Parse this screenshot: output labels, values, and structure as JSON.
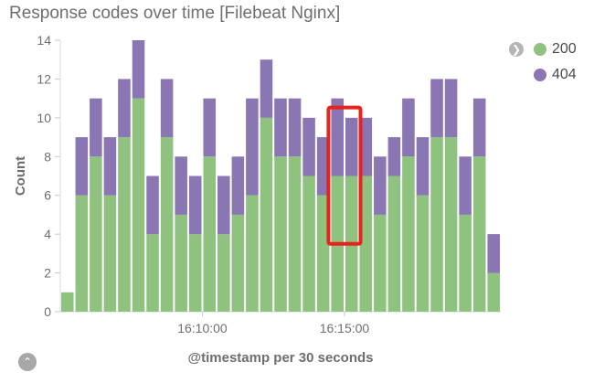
{
  "chart_data": {
    "type": "bar",
    "stacked": true,
    "title": "Response codes over time [Filebeat Nginx]",
    "xlabel": "@timestamp per 30 seconds",
    "ylabel": "Count",
    "ylim": [
      0,
      14
    ],
    "yticks": [
      0,
      2,
      4,
      6,
      8,
      10,
      12,
      14
    ],
    "xtick_labels": [
      {
        "label": "16:10:00",
        "bar_index": 10
      },
      {
        "label": "16:15:00",
        "bar_index": 20
      }
    ],
    "grid": false,
    "legend_position": "top-right",
    "series": [
      {
        "name": "200",
        "color": "#8fc27f",
        "values": [
          1,
          6,
          8,
          6,
          9,
          11,
          4,
          9,
          5,
          4,
          8,
          4,
          5,
          6,
          10,
          8,
          8,
          7,
          6,
          7,
          7,
          7,
          5,
          7,
          8,
          6,
          9,
          9,
          5,
          8,
          2
        ]
      },
      {
        "name": "404",
        "color": "#8a76b3",
        "values": [
          0,
          3,
          3,
          3,
          3,
          3,
          3,
          3,
          3,
          3,
          3,
          3,
          3,
          5,
          3,
          3,
          3,
          3,
          3,
          4,
          3,
          3,
          3,
          2,
          3,
          3,
          3,
          3,
          3,
          3,
          2
        ]
      }
    ],
    "highlight": {
      "bar_start": 19,
      "bar_end": 20,
      "color": "#e8231d"
    }
  },
  "legend": {
    "items": [
      {
        "label": "200",
        "color": "#8fc27f"
      },
      {
        "label": "404",
        "color": "#8a76b3"
      }
    ],
    "toggle_icon": "chevron-right-icon"
  },
  "footer": {
    "toggle_icon": "chevron-up-icon"
  }
}
